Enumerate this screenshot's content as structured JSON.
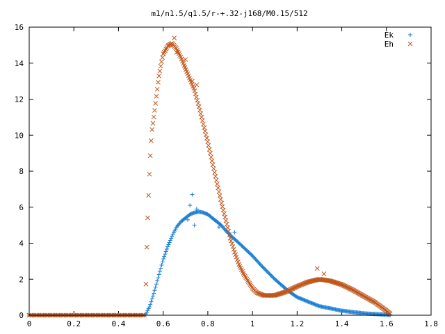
{
  "chart_data": {
    "type": "scatter",
    "title": "m1/n1.5/q1.5/r-+.32-j168/M0.15/512",
    "xlabel": "",
    "ylabel": "",
    "xlim": [
      0,
      1.8
    ],
    "ylim": [
      0,
      16
    ],
    "xticks": [
      "0",
      "0.2",
      "0.4",
      "0.6",
      "0.8",
      "1",
      "1.2",
      "1.4",
      "1.6",
      "1.8"
    ],
    "yticks": [
      "0",
      "2",
      "4",
      "6",
      "8",
      "10",
      "12",
      "14",
      "16"
    ],
    "grid": false,
    "legend": "top-right",
    "series": [
      {
        "name": "Ek",
        "marker": "plus",
        "color": "#1a7fd4",
        "curve": [
          [
            0.0,
            0
          ],
          [
            0.52,
            0
          ],
          [
            0.54,
            0.5
          ],
          [
            0.56,
            1.3
          ],
          [
            0.58,
            2.2
          ],
          [
            0.6,
            3.1
          ],
          [
            0.62,
            3.8
          ],
          [
            0.64,
            4.4
          ],
          [
            0.66,
            4.9
          ],
          [
            0.68,
            5.2
          ],
          [
            0.7,
            5.4
          ],
          [
            0.72,
            5.6
          ],
          [
            0.74,
            5.7
          ],
          [
            0.76,
            5.75
          ],
          [
            0.78,
            5.7
          ],
          [
            0.8,
            5.6
          ],
          [
            0.82,
            5.4
          ],
          [
            0.84,
            5.2
          ],
          [
            0.86,
            5.0
          ],
          [
            0.88,
            4.7
          ],
          [
            0.9,
            4.45
          ],
          [
            0.94,
            4.0
          ],
          [
            1.0,
            3.3
          ],
          [
            1.04,
            2.75
          ],
          [
            1.1,
            2.0
          ],
          [
            1.16,
            1.35
          ],
          [
            1.2,
            1.0
          ],
          [
            1.3,
            0.5
          ],
          [
            1.4,
            0.25
          ],
          [
            1.5,
            0.1
          ],
          [
            1.6,
            0.03
          ],
          [
            1.62,
            0
          ]
        ],
        "outliers": [
          [
            0.71,
            5.3
          ],
          [
            0.72,
            6.1
          ],
          [
            0.73,
            6.7
          ],
          [
            0.74,
            5.0
          ],
          [
            0.75,
            5.9
          ],
          [
            0.85,
            4.9
          ],
          [
            0.92,
            4.6
          ]
        ]
      },
      {
        "name": "Eh",
        "marker": "cross",
        "color": "#c0561b",
        "curve": [
          [
            0.0,
            0
          ],
          [
            0.52,
            0
          ],
          [
            0.525,
            3.0
          ],
          [
            0.53,
            5.2
          ],
          [
            0.535,
            6.8
          ],
          [
            0.54,
            8.3
          ],
          [
            0.545,
            9.5
          ],
          [
            0.55,
            10.3
          ],
          [
            0.56,
            11.2
          ],
          [
            0.57,
            12.2
          ],
          [
            0.58,
            13.2
          ],
          [
            0.59,
            13.9
          ],
          [
            0.6,
            14.5
          ],
          [
            0.62,
            14.95
          ],
          [
            0.64,
            15.1
          ],
          [
            0.66,
            14.8
          ],
          [
            0.68,
            14.3
          ],
          [
            0.7,
            13.7
          ],
          [
            0.72,
            13.1
          ],
          [
            0.74,
            12.5
          ],
          [
            0.76,
            11.6
          ],
          [
            0.78,
            10.6
          ],
          [
            0.8,
            9.6
          ],
          [
            0.82,
            8.5
          ],
          [
            0.84,
            7.4
          ],
          [
            0.86,
            6.3
          ],
          [
            0.88,
            5.3
          ],
          [
            0.9,
            4.3
          ],
          [
            0.92,
            3.5
          ],
          [
            0.94,
            2.8
          ],
          [
            0.96,
            2.3
          ],
          [
            0.98,
            1.9
          ],
          [
            1.0,
            1.5
          ],
          [
            1.02,
            1.25
          ],
          [
            1.05,
            1.1
          ],
          [
            1.1,
            1.1
          ],
          [
            1.15,
            1.3
          ],
          [
            1.2,
            1.6
          ],
          [
            1.25,
            1.85
          ],
          [
            1.3,
            2.0
          ],
          [
            1.35,
            1.9
          ],
          [
            1.4,
            1.7
          ],
          [
            1.45,
            1.4
          ],
          [
            1.5,
            1.05
          ],
          [
            1.55,
            0.7
          ],
          [
            1.6,
            0.25
          ],
          [
            1.62,
            0.05
          ]
        ],
        "outliers": [
          [
            0.65,
            15.4
          ],
          [
            0.66,
            14.6
          ],
          [
            0.7,
            14.2
          ],
          [
            0.73,
            13.0
          ],
          [
            0.75,
            12.8
          ],
          [
            1.29,
            2.6
          ],
          [
            1.32,
            2.3
          ]
        ]
      }
    ]
  }
}
